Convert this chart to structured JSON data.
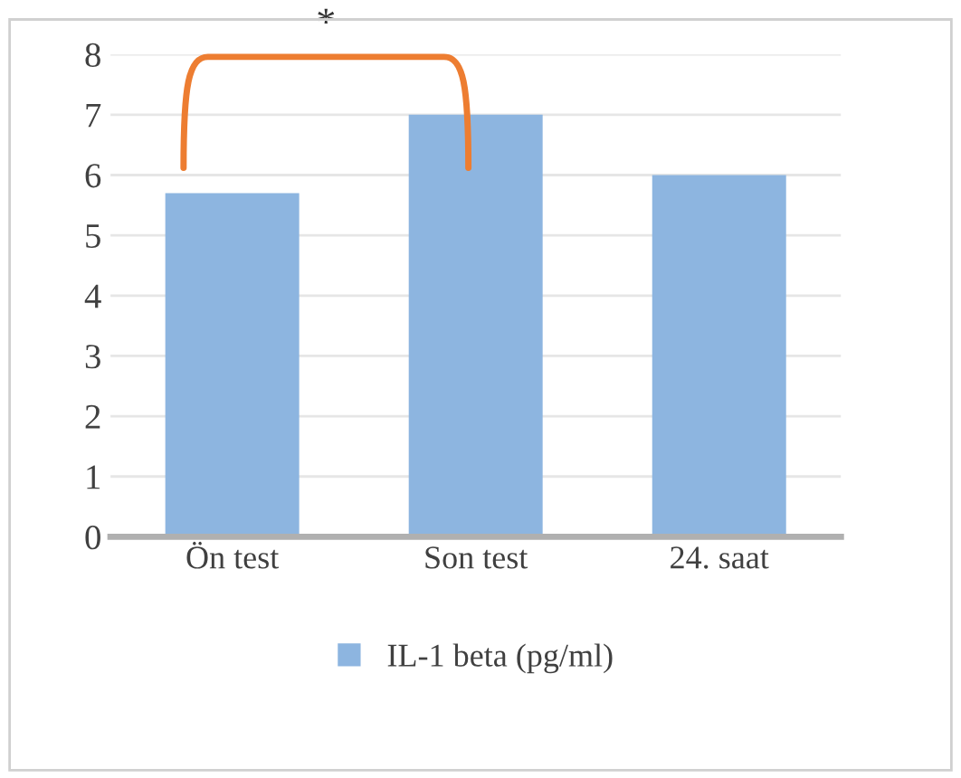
{
  "chart_data": {
    "type": "bar",
    "categories": [
      "Ön test",
      "Son test",
      "24. saat"
    ],
    "series": [
      {
        "name": "IL-1 beta (pg/ml)",
        "color": "#8db5e0",
        "values": [
          5.7,
          7.0,
          6.0
        ]
      }
    ],
    "ylim": [
      0,
      8
    ],
    "yticks": [
      0,
      1,
      2,
      3,
      4,
      5,
      6,
      7,
      8
    ],
    "grid": "y",
    "legend": "bottom",
    "annotations": [
      "*"
    ]
  }
}
